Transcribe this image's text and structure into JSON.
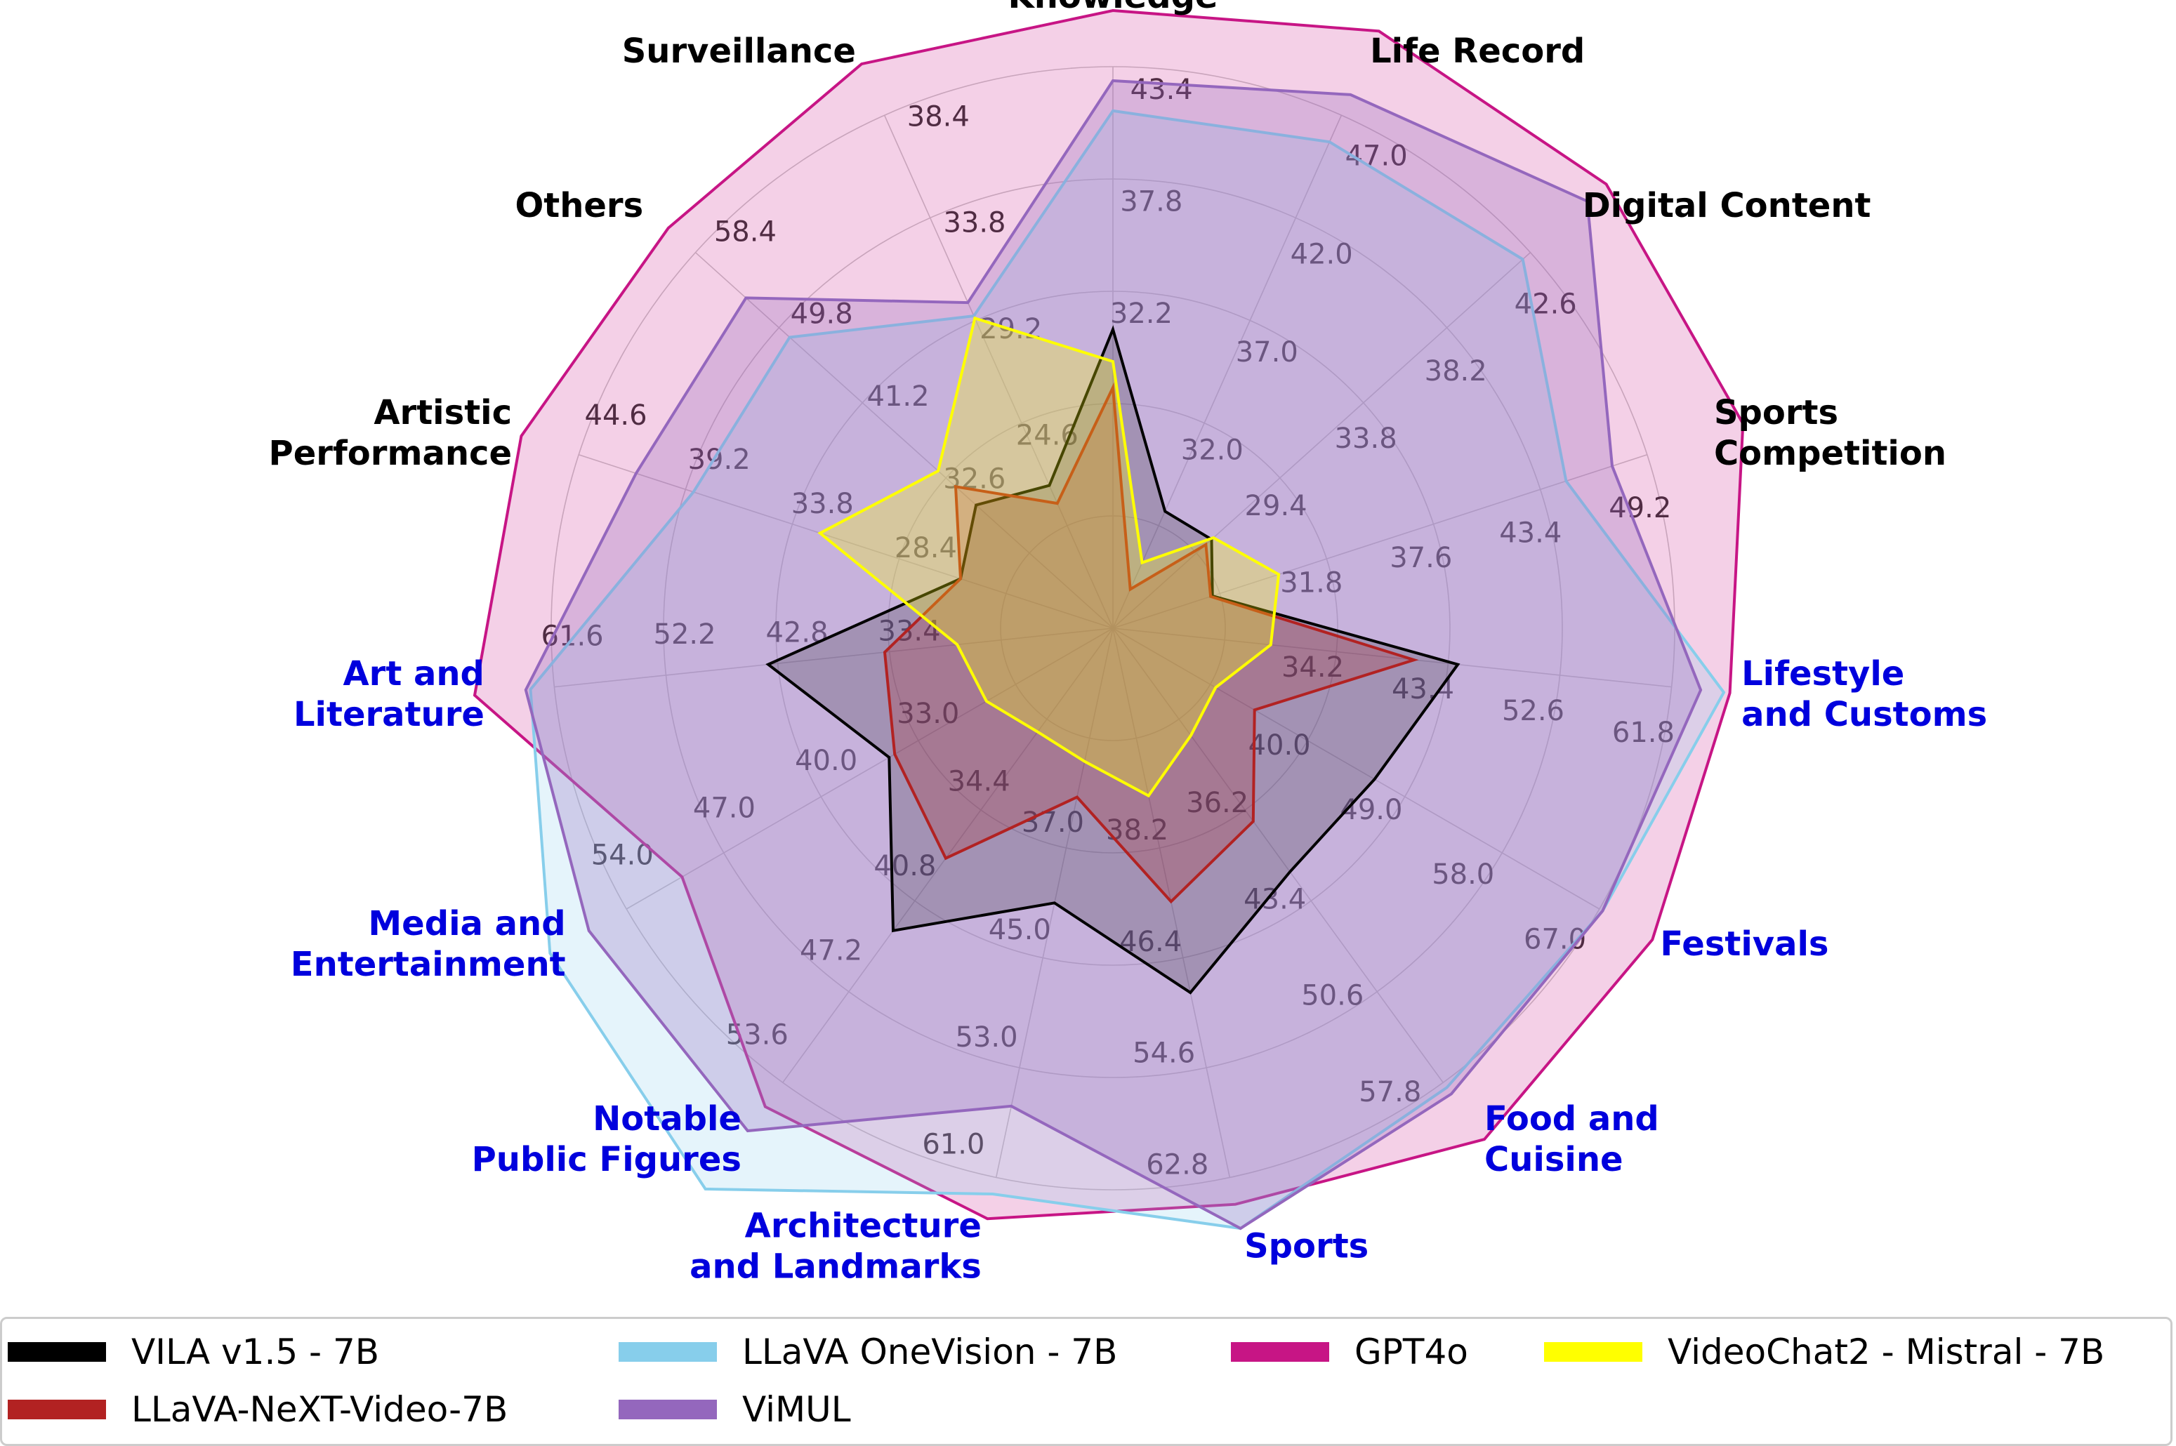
{
  "chart_data": {
    "type": "radar",
    "title": "",
    "categories": [
      {
        "label": "Knowledge",
        "color": "#000000",
        "ticks": [
          "32.2",
          "37.8",
          "43.4"
        ]
      },
      {
        "label": "Life Record",
        "color": "#000000",
        "ticks": [
          "32.0",
          "37.0",
          "42.0",
          "47.0"
        ]
      },
      {
        "label": "Digital Content",
        "color": "#000000",
        "ticks": [
          "29.4",
          "33.8",
          "38.2",
          "42.6"
        ]
      },
      {
        "label": "Sports Competition",
        "color": "#000000",
        "ticks": [
          "31.8",
          "37.6",
          "43.4",
          "49.2"
        ]
      },
      {
        "label": "Lifestyle and Customs",
        "color": "#0000dd",
        "ticks": [
          "34.2",
          "43.4",
          "52.6",
          "61.8"
        ]
      },
      {
        "label": "Festivals",
        "color": "#0000dd",
        "ticks": [
          "40.0",
          "49.0",
          "58.0",
          "67.0"
        ]
      },
      {
        "label": "Food and Cuisine",
        "color": "#0000dd",
        "ticks": [
          "36.2",
          "43.4",
          "50.6",
          "57.8"
        ]
      },
      {
        "label": "Sports",
        "color": "#0000dd",
        "ticks": [
          "38.2",
          "46.4",
          "54.6",
          "62.8"
        ]
      },
      {
        "label": "Architecture and Landmarks",
        "color": "#0000dd",
        "ticks": [
          "37.0",
          "45.0",
          "53.0",
          "61.0"
        ]
      },
      {
        "label": "Notable Public Figures",
        "color": "#0000dd",
        "ticks": [
          "34.4",
          "40.8",
          "47.2",
          "53.6"
        ]
      },
      {
        "label": "Media and Entertainment",
        "color": "#0000dd",
        "ticks": [
          "33.0",
          "40.0",
          "47.0",
          "54.0"
        ]
      },
      {
        "label": "Art and Literature",
        "color": "#0000dd",
        "ticks": [
          "33.4",
          "42.8",
          "52.2",
          "61.6"
        ]
      },
      {
        "label": "Artistic Performance",
        "color": "#000000",
        "ticks": [
          "28.4",
          "33.8",
          "39.2",
          "44.6"
        ]
      },
      {
        "label": "Others",
        "color": "#000000",
        "ticks": [
          "32.6",
          "41.2",
          "49.8",
          "58.4"
        ]
      },
      {
        "label": "Surveillance",
        "color": "#000000",
        "ticks": [
          "24.6",
          "29.2",
          "33.8",
          "38.4"
        ]
      }
    ],
    "series": [
      {
        "name": "VILA v1.5 - 7B",
        "color": "#000000",
        "values": [
          30.3,
          27.7,
          25.8,
          25.6,
          44.2,
          46.2,
          41.1,
          49.0,
          41.0,
          42.9,
          35.1,
          43.6,
          25.3,
          29.5,
          21.8
        ]
      },
      {
        "name": "LLaVA-NeXT-Video-7B",
        "color": "#b22222",
        "values": [
          27.4,
          23.9,
          25.5,
          25.5,
          40.6,
          35.1,
          37.1,
          42.2,
          33.3,
          37.8,
          34.7,
          33.8,
          25.3,
          31.6,
          21.0
        ]
      },
      {
        "name": "LLaVA OneVision - 7B",
        "color": "#87ceeb",
        "values": [
          41.2,
          45.7,
          42.2,
          44.8,
          66.1,
          67.3,
          58.2,
          66.6,
          62.2,
          61.1,
          59.5,
          63.6,
          38.8,
          48.7,
          29.4
        ]
      },
      {
        "name": "ViMUL",
        "color": "#9467bd",
        "values": [
          42.7,
          48.0,
          45.6,
          47.3,
          64.2,
          67.3,
          58.7,
          66.6,
          55.8,
          57.0,
          56.7,
          64.0,
          41.7,
          53.2,
          30.0
        ]
      },
      {
        "name": "GPT4o",
        "color": "#c71585",
        "values": [
          46.2,
          51.1,
          46.6,
          54.4,
          66.6,
          71.9,
          62.3,
          64.8,
          64.0,
          55.3,
          50.0,
          68.3,
          47.5,
          61.2,
          40.7
        ]
      },
      {
        "name": "VideoChat2 - Mistral - 7B",
        "color": "#ffff00",
        "values": [
          28.7,
          25.2,
          25.9,
          29.2,
          28.8,
          31.5,
          30.3,
          34.3,
          30.7,
          28.9,
          28.1,
          27.7,
          32.4,
          33.4,
          29.3
        ]
      }
    ],
    "legend_position": "bottom"
  }
}
